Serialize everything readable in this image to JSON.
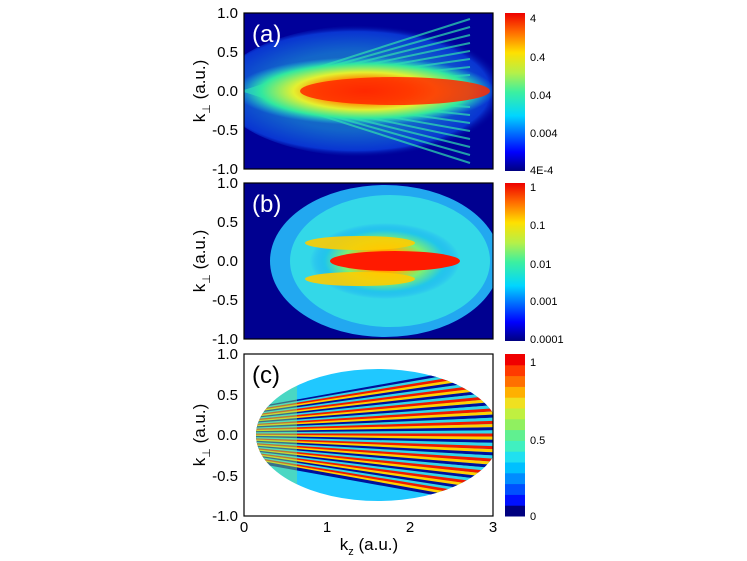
{
  "chart_data": [
    {
      "type": "heatmap",
      "panel_label": "(a)",
      "ylabel_main": "k",
      "ylabel_sub": "⊥",
      "ylabel_unit": "(a.u.)",
      "xlim": [
        0,
        3
      ],
      "ylim": [
        -1.0,
        1.0
      ],
      "yticks": [
        "1.0",
        "0.5",
        "0.0",
        "-0.5",
        "-1.0"
      ],
      "colorbar": {
        "scale": "log",
        "range": [
          0.0004,
          4
        ],
        "ticks": [
          "4",
          "0.4",
          "0.04",
          "0.004",
          "4E-4"
        ]
      },
      "colors": {
        "low": "#00007a",
        "mid": "#3de0a0",
        "high": "#ff1a00"
      }
    },
    {
      "type": "heatmap",
      "panel_label": "(b)",
      "ylabel_main": "k",
      "ylabel_sub": "⊥",
      "ylabel_unit": "(a.u.)",
      "xlim": [
        0,
        3
      ],
      "ylim": [
        -1.0,
        1.0
      ],
      "yticks": [
        "1.0",
        "0.5",
        "0.0",
        "-0.5",
        "-1.0"
      ],
      "colorbar": {
        "scale": "log",
        "range": [
          0.0001,
          1
        ],
        "ticks": [
          "1",
          "0.1",
          "0.01",
          "0.001",
          "0.0001"
        ]
      }
    },
    {
      "type": "heatmap",
      "panel_label": "(c)",
      "ylabel_main": "k",
      "ylabel_sub": "⊥",
      "ylabel_unit": "(a.u.)",
      "xlim": [
        0,
        3
      ],
      "ylim": [
        -1.0,
        1.0
      ],
      "yticks": [
        "1.0",
        "0.5",
        "0.0",
        "-0.5",
        "-1.0"
      ],
      "xticks": [
        "0",
        "1",
        "2",
        "3"
      ],
      "xlabel_main": "k",
      "xlabel_sub": "z",
      "xlabel_unit": "(a.u.)",
      "colorbar": {
        "scale": "linear",
        "range": [
          0,
          1
        ],
        "ticks": [
          "1",
          "0.5",
          "0"
        ]
      }
    }
  ]
}
